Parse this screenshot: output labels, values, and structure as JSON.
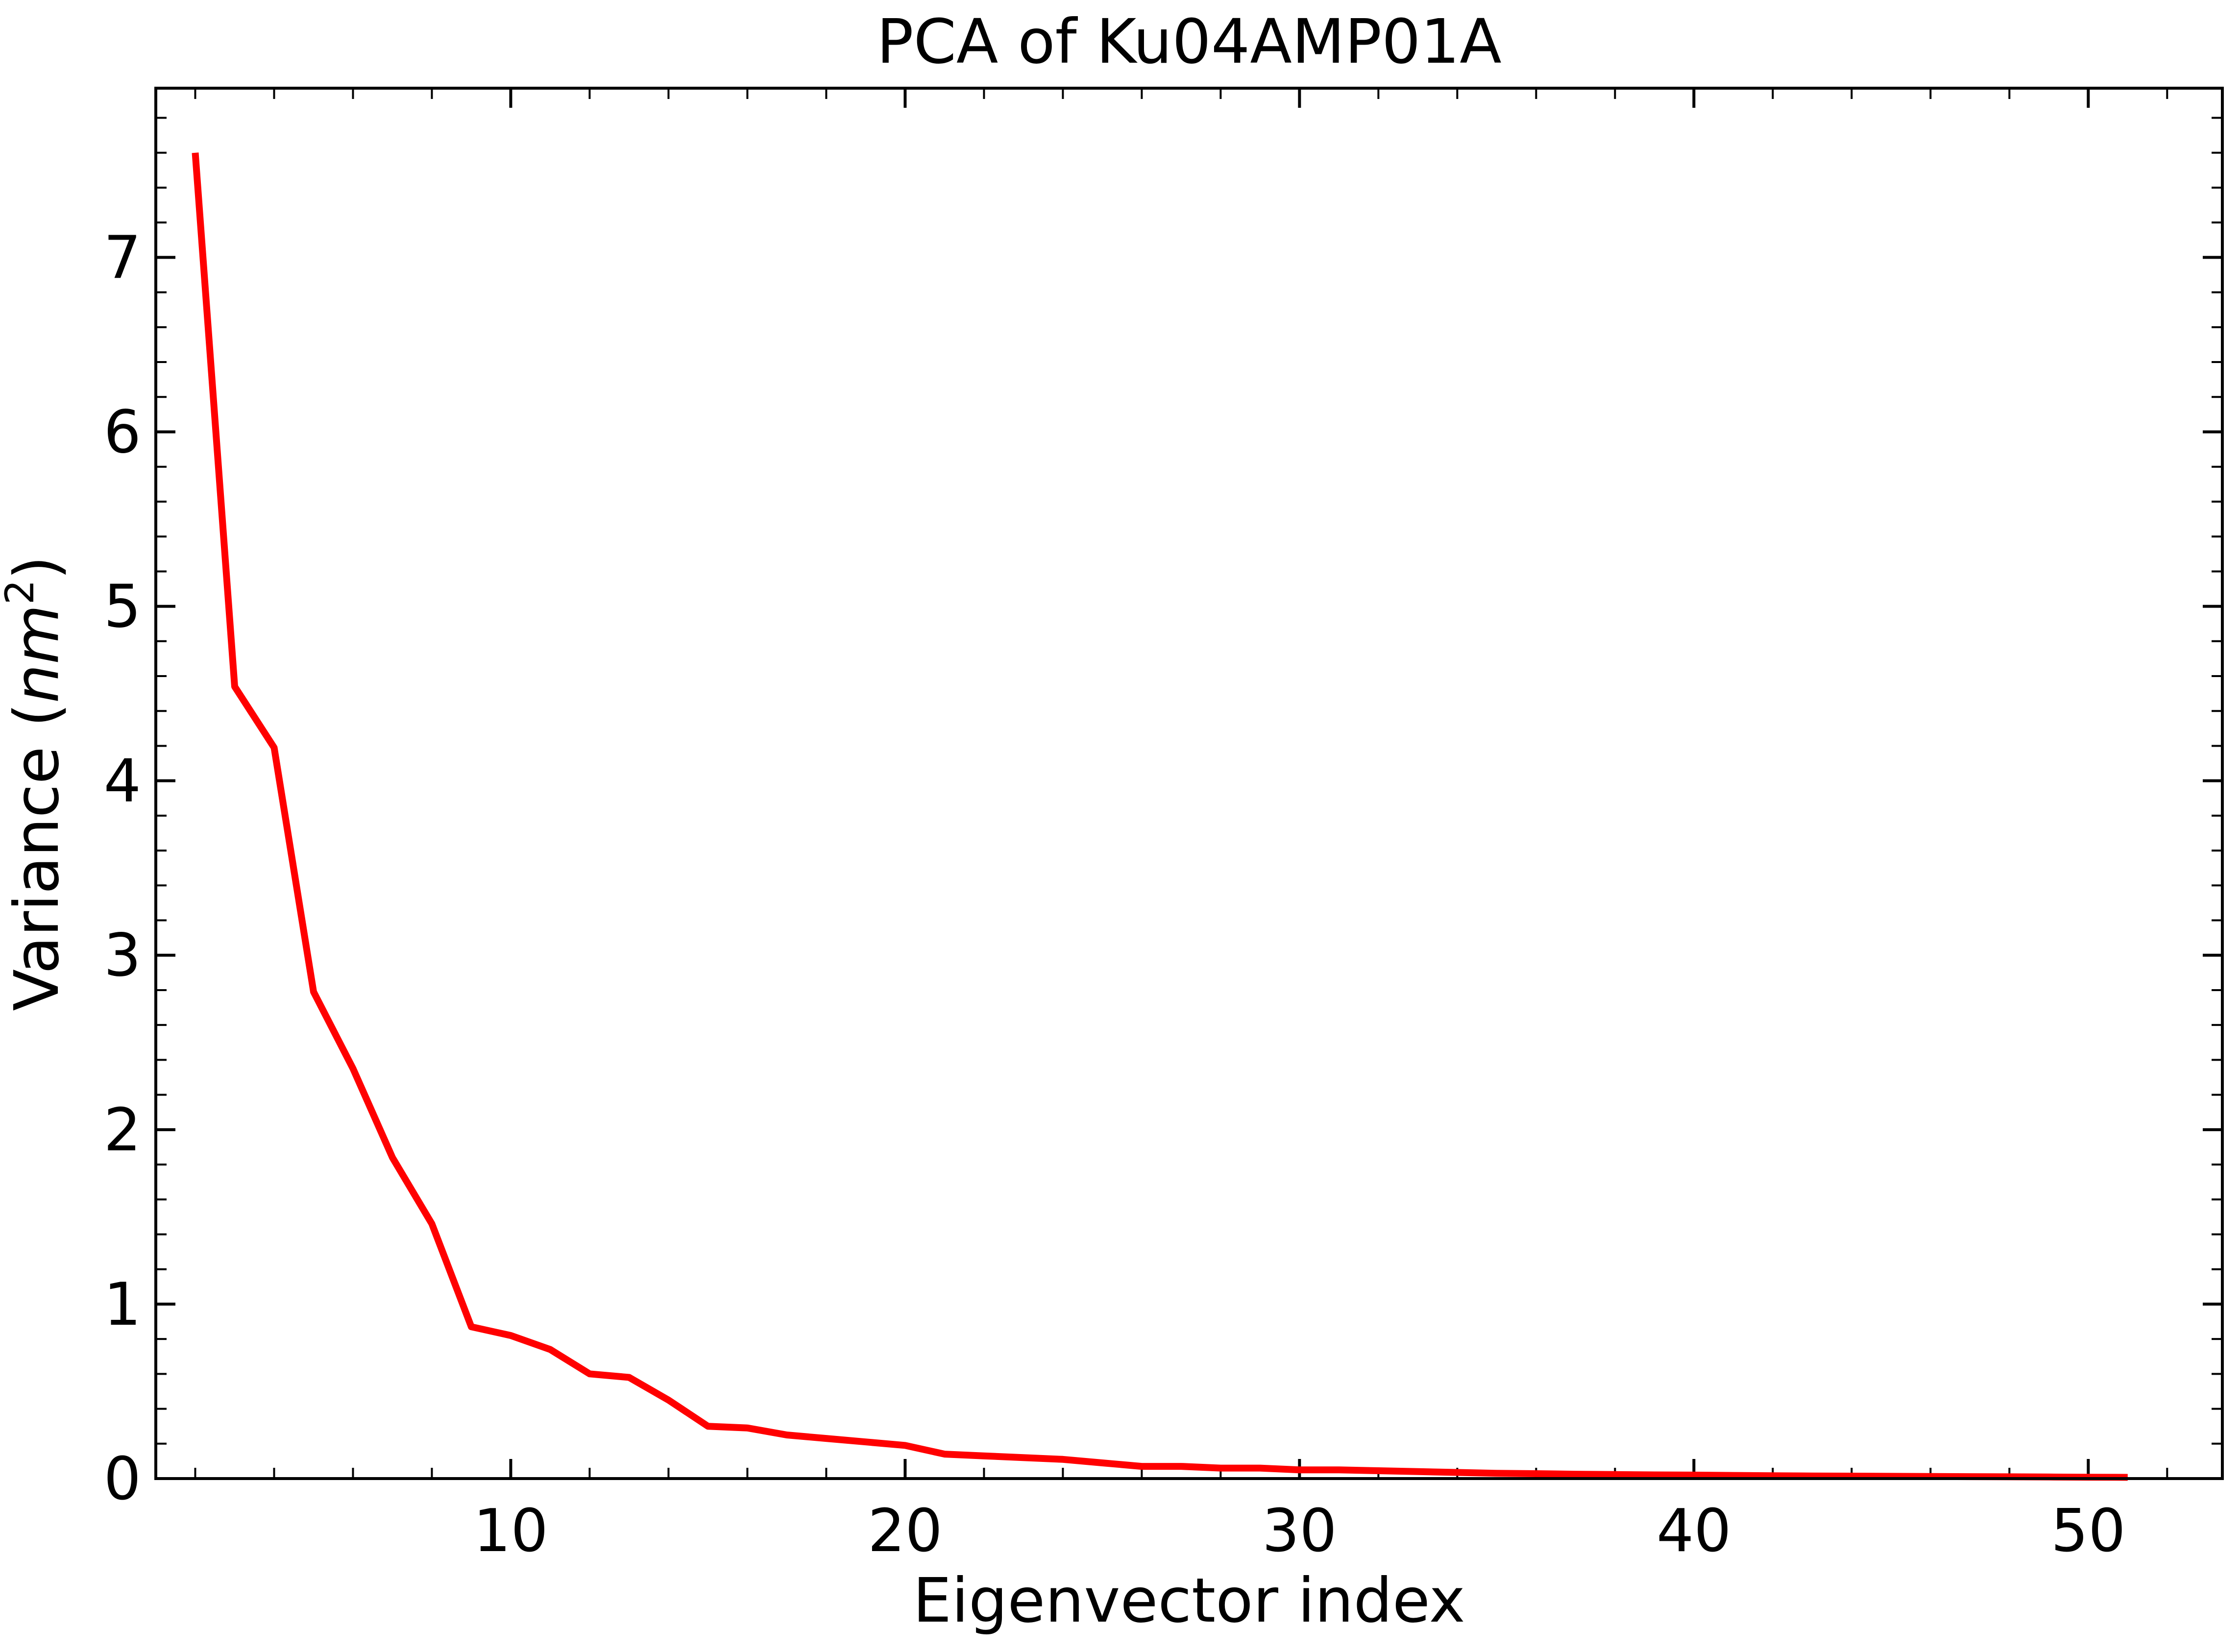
{
  "chart_data": {
    "type": "line",
    "title": "PCA of Ku04AMP01A",
    "xlabel": "Eigenvector index",
    "ylabel_prefix": "Variance (",
    "ylabel_unit": "nm",
    "ylabel_exponent": "2",
    "ylabel_suffix": ")",
    "xlim": [
      1,
      53.4
    ],
    "ylim": [
      0,
      7.97
    ],
    "x_ticks": [
      10,
      20,
      30,
      40,
      50
    ],
    "y_ticks": [
      0,
      1,
      2,
      3,
      4,
      5,
      6,
      7
    ],
    "x_minor_step": 2,
    "y_minor_step": 0.2,
    "line_color": "#ff0000",
    "grid": false,
    "series": [
      {
        "x": [
          2,
          3,
          4,
          5,
          6,
          7,
          8,
          9,
          10,
          11,
          12,
          13,
          14,
          15,
          16,
          17,
          18,
          19,
          20,
          21,
          22,
          23,
          24,
          25,
          26,
          27,
          28,
          29,
          30,
          31,
          32,
          33,
          34,
          35,
          36,
          37,
          38,
          39,
          40,
          41,
          42,
          43,
          44,
          45,
          46,
          47,
          48,
          49,
          50,
          51
        ],
        "values": [
          7.6,
          4.54,
          4.19,
          2.79,
          2.35,
          1.84,
          1.46,
          0.87,
          0.82,
          0.74,
          0.6,
          0.58,
          0.45,
          0.3,
          0.29,
          0.25,
          0.23,
          0.21,
          0.19,
          0.14,
          0.13,
          0.12,
          0.11,
          0.09,
          0.07,
          0.07,
          0.06,
          0.06,
          0.05,
          0.05,
          0.045,
          0.04,
          0.035,
          0.03,
          0.028,
          0.025,
          0.023,
          0.021,
          0.02,
          0.018,
          0.016,
          0.015,
          0.014,
          0.013,
          0.012,
          0.011,
          0.01,
          0.009,
          0.008,
          0.007
        ]
      }
    ]
  }
}
